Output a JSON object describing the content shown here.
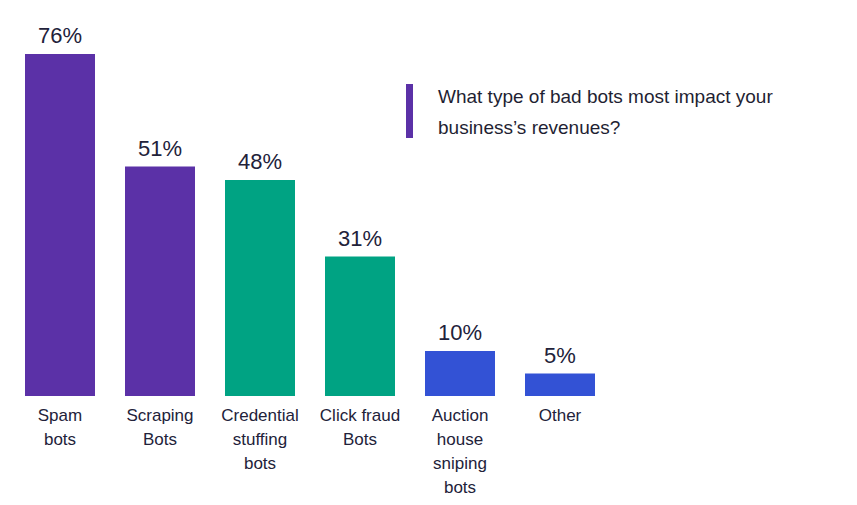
{
  "chart_data": {
    "type": "bar",
    "title": "What type of bad bots most impact your business’s revenues?",
    "categories": [
      "Spam\nbots",
      "Scraping\nBots",
      "Credential\nstuffing\nbots",
      "Click fraud\nBots",
      "Auction\nhouse\nsniping\nbots",
      "Other"
    ],
    "values": [
      76,
      51,
      48,
      31,
      10,
      5
    ],
    "value_labels": [
      "76%",
      "51%",
      "48%",
      "31%",
      "10%",
      "5%"
    ],
    "colors": [
      "#5b31a7",
      "#5b31a7",
      "#00a383",
      "#00a383",
      "#3352d5",
      "#3352d5"
    ],
    "ylim": [
      0,
      80
    ],
    "grid": false,
    "data_labels": true,
    "tick_labels": false
  }
}
